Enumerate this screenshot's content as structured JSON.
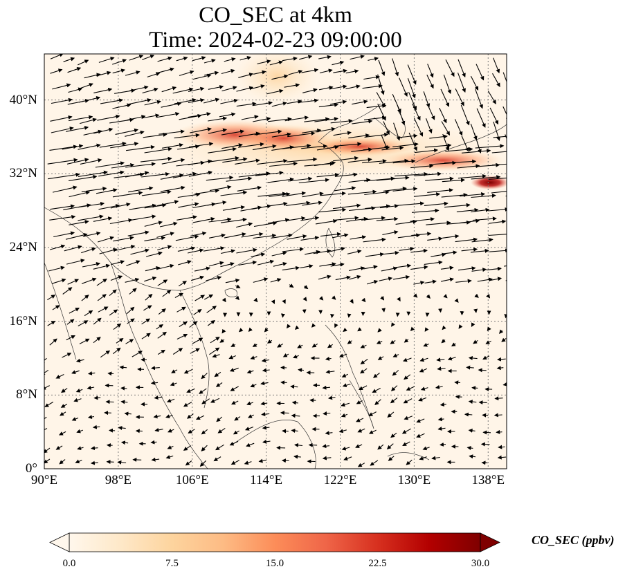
{
  "title": {
    "line1": "CO_SEC at 4km",
    "line2": "Time: 2024-02-23 09:00:00"
  },
  "map": {
    "type": "heatmap",
    "variable": "CO_SEC",
    "level": "4km",
    "extent": {
      "lon": [
        90,
        140
      ],
      "lat": [
        0,
        45
      ]
    },
    "grid": true,
    "x_ticks": [
      "90°E",
      "98°E",
      "106°E",
      "114°E",
      "122°E",
      "130°E",
      "138°E"
    ],
    "x_tick_values": [
      90,
      98,
      106,
      114,
      122,
      130,
      138
    ],
    "y_ticks": [
      "0°",
      "8°N",
      "16°N",
      "24°N",
      "32°N",
      "40°N"
    ],
    "y_tick_values": [
      0,
      8,
      16,
      24,
      32,
      40
    ],
    "overlay": "wind vectors",
    "colormap": "OrRd"
  },
  "chart_data": {
    "type": "heatmap",
    "x_range": [
      90,
      140
    ],
    "y_range": [
      0,
      45
    ],
    "plume": [
      {
        "lon": 110,
        "lat": 36,
        "value": 12
      },
      {
        "lon": 115,
        "lat": 35.5,
        "value": 15
      },
      {
        "lon": 120,
        "lat": 35,
        "value": 13
      },
      {
        "lon": 125,
        "lat": 34.5,
        "value": 11
      },
      {
        "lon": 130,
        "lat": 33.5,
        "value": 12
      },
      {
        "lon": 135,
        "lat": 33,
        "value": 16
      },
      {
        "lon": 138,
        "lat": 31.5,
        "value": 27
      }
    ]
  },
  "colorbar": {
    "label": "CO_SEC (ppbv)",
    "ticks": [
      "0.0",
      "7.5",
      "15.0",
      "22.5",
      "30.0"
    ],
    "min": 0,
    "max": 30,
    "extend": "both",
    "colors": [
      "#fff7ec",
      "#fee8c8",
      "#fdd49e",
      "#fdbb84",
      "#fc8d59",
      "#ef6548",
      "#d7301f",
      "#b30000",
      "#7f0000"
    ]
  }
}
